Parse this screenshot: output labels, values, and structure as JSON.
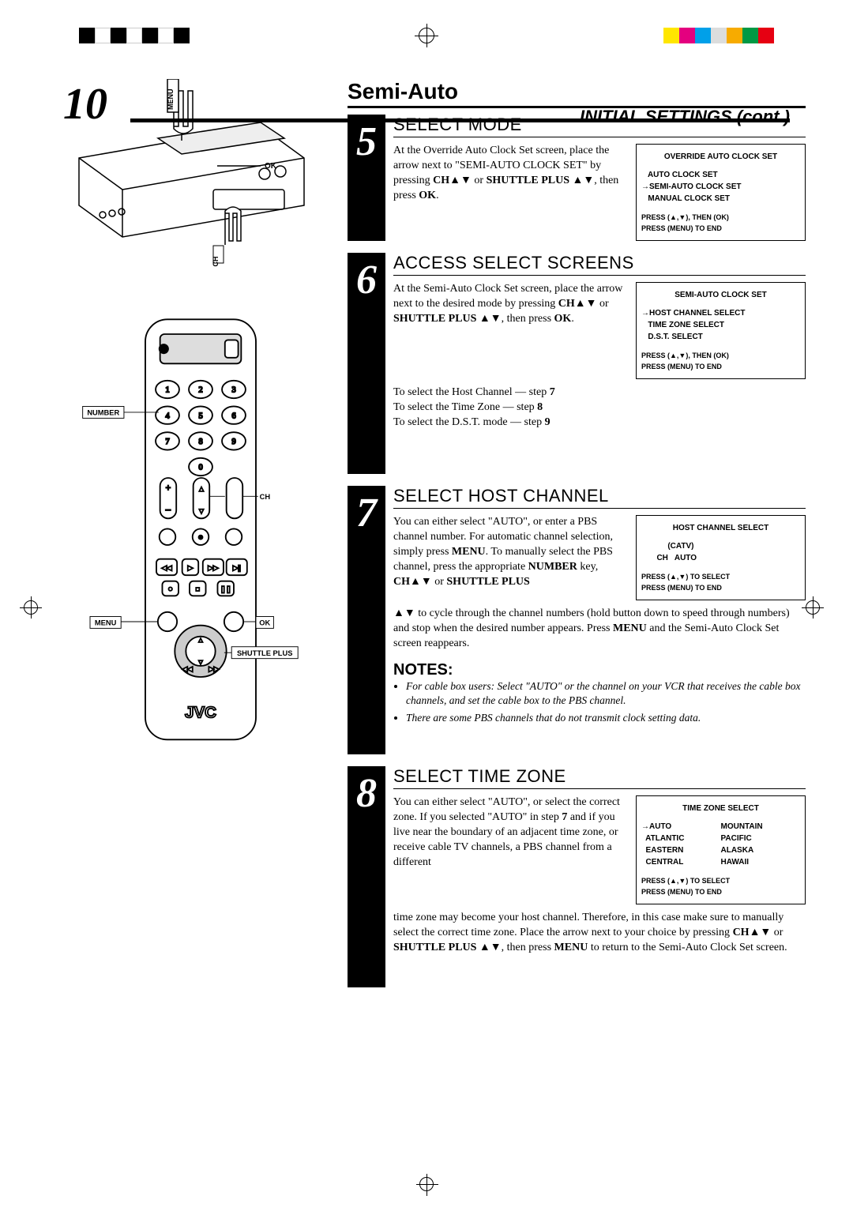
{
  "printMarks": {
    "swatches1": [
      "#000000",
      "#ffffff",
      "#000000",
      "#ffffff",
      "#000000",
      "#ffffff",
      "#000000"
    ],
    "swatches2": [
      "#ffe600",
      "#e4007f",
      "#00a0e9",
      "#dcdddd",
      "#f7ab00",
      "#009944",
      "#e60012"
    ]
  },
  "pageNumber": "10",
  "headerText": "INITIAL SETTINGS (cont.)",
  "sectionTitle": "Semi-Auto",
  "labels": {
    "menu": "MENU",
    "ok": "OK",
    "ch": "CH",
    "number": "NUMBER",
    "shuttle": "SHUTTLE PLUS"
  },
  "steps": {
    "5": {
      "num": "5",
      "title": "SELECT MODE",
      "text": "At the Override Auto Clock Set screen, place the arrow next to \"SEMI-AUTO CLOCK SET\" by pressing <b>CH▲▼</b> or <b>SHUTTLE PLUS ▲▼</b>, then press <b>OK</b>.",
      "screen": {
        "title": "OVERRIDE AUTO CLOCK SET",
        "lines": [
          "   AUTO CLOCK SET",
          "→SEMI-AUTO CLOCK SET",
          "   MANUAL CLOCK SET"
        ],
        "footer": [
          "PRESS (▲,▼), THEN (OK)",
          "PRESS (MENU) TO END"
        ]
      }
    },
    "6": {
      "num": "6",
      "title": "ACCESS SELECT SCREENS",
      "text": "At the Semi-Auto Clock Set screen, place the arrow next to the desired mode by pressing <b>CH▲▼</b> or <b>SHUTTLE PLUS ▲▼</b>, then press <b>OK</b>.",
      "screen": {
        "title": "SEMI-AUTO CLOCK SET",
        "lines": [
          "→HOST CHANNEL SELECT",
          "   TIME ZONE SELECT",
          "   D.S.T. SELECT"
        ],
        "footer": [
          "PRESS (▲,▼), THEN (OK)",
          "PRESS (MENU) TO END"
        ]
      },
      "after": "To select the Host Channel — step <b>7</b><br>To select the Time Zone — step <b>8</b><br>To select the D.S.T. mode — step <b>9</b>"
    },
    "7": {
      "num": "7",
      "title": "SELECT HOST CHANNEL",
      "text": "You can either select \"AUTO\", or enter a PBS channel number. For automatic channel selection, simply press <b>MENU</b>. To manually select the PBS channel, press the appropriate <b>NUMBER</b> key, <b>CH▲▼</b> or <b>SHUTTLE PLUS</b>",
      "screen": {
        "title": "HOST CHANNEL SELECT",
        "lines": [
          "            (CATV)",
          "       CH   AUTO"
        ],
        "footer": [
          "PRESS (▲,▼) TO SELECT",
          "PRESS (MENU) TO END"
        ]
      },
      "after": "▲▼ to cycle through the channel numbers (hold button down to speed through numbers) and stop when the desired number appears. Press <b>MENU</b> and the Semi-Auto Clock Set screen reappears."
    },
    "8": {
      "num": "8",
      "title": "SELECT TIME ZONE",
      "text": "You can either select \"AUTO\", or select the correct zone. If you selected \"AUTO\" in step <b>7</b> and if you live near the boundary of an adjacent time zone, or receive cable TV channels, a PBS channel from a different",
      "screen": {
        "title": "TIME ZONE SELECT",
        "col1": [
          "→AUTO",
          "  ATLANTIC",
          "  EASTERN",
          "  CENTRAL"
        ],
        "col2": [
          "MOUNTAIN",
          "PACIFIC",
          "ALASKA",
          "HAWAII"
        ],
        "footer": [
          "PRESS (▲,▼) TO SELECT",
          "PRESS (MENU) TO END"
        ]
      },
      "after": "time zone may become your host channel. Therefore, in this case make sure to manually select the correct time zone. Place the arrow next to your choice by pressing <b>CH▲▼</b> or <b>SHUTTLE PLUS ▲▼</b>, then press <b>MENU</b> to return to the Semi-Auto Clock Set screen."
    }
  },
  "notes": {
    "title": "NOTES:",
    "items": [
      "For cable box users: Select \"AUTO\" or the channel on your VCR that receives the cable box channels, and set the cable box to the PBS channel.",
      "There are some PBS channels that do not transmit clock setting data."
    ]
  }
}
